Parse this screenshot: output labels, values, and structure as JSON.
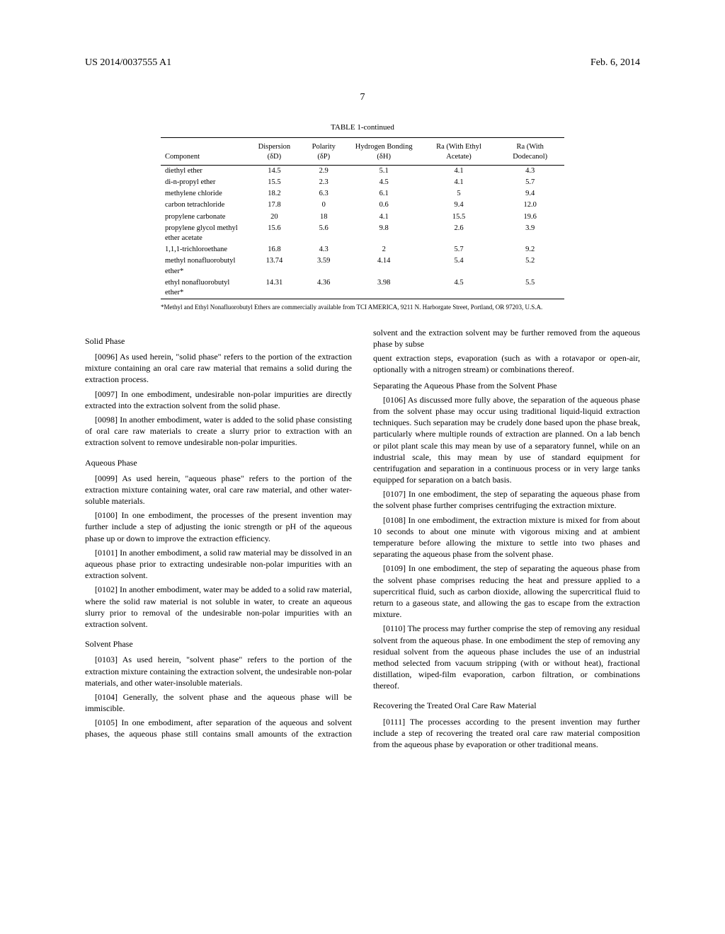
{
  "header": {
    "left": "US 2014/0037555 A1",
    "right": "Feb. 6, 2014"
  },
  "page_number": "7",
  "table": {
    "caption": "TABLE 1-continued",
    "columns": [
      "Component",
      "Dispersion (δD)",
      "Polarity (δP)",
      "Hydrogen Bonding (δH)",
      "Ra (With Ethyl Acetate)",
      "Ra (With Dodecanol)"
    ],
    "rows": [
      [
        "diethyl ether",
        "14.5",
        "2.9",
        "5.1",
        "4.1",
        "4.3"
      ],
      [
        "di-n-propyl ether",
        "15.5",
        "2.3",
        "4.5",
        "4.1",
        "5.7"
      ],
      [
        "methylene chloride",
        "18.2",
        "6.3",
        "6.1",
        "5",
        "9.4"
      ],
      [
        "carbon tetrachloride",
        "17.8",
        "0",
        "0.6",
        "9.4",
        "12.0"
      ],
      [
        "propylene carbonate",
        "20",
        "18",
        "4.1",
        "15.5",
        "19.6"
      ],
      [
        "propylene glycol methyl ether acetate",
        "15.6",
        "5.6",
        "9.8",
        "2.6",
        "3.9"
      ],
      [
        "1,1,1-trichloroethane",
        "16.8",
        "4.3",
        "2",
        "5.7",
        "9.2"
      ],
      [
        "methyl nonafluorobutyl ether*",
        "13.74",
        "3.59",
        "4.14",
        "5.4",
        "5.2"
      ],
      [
        "ethyl nonafluorobutyl ether*",
        "14.31",
        "4.36",
        "3.98",
        "4.5",
        "5.5"
      ]
    ],
    "footnote": "*Methyl and Ethyl Nonafluorobutyl Ethers are commercially available from TCI AMERICA, 9211 N. Harborgate Street, Portland, OR 97203, U.S.A."
  },
  "sections": {
    "solid_phase_title": "Solid Phase",
    "p0096": "[0096]   As used herein, \"solid phase\" refers to the portion of the extraction mixture containing an oral care raw material that remains a solid during the extraction process.",
    "p0097": "[0097]   In one embodiment, undesirable non-polar impurities are directly extracted into the extraction solvent from the solid phase.",
    "p0098": "[0098]   In another embodiment, water is added to the solid phase consisting of oral care raw materials to create a slurry prior to extraction with an extraction solvent to remove undesirable non-polar impurities.",
    "aqueous_phase_title": "Aqueous Phase",
    "p0099": "[0099]   As used herein, \"aqueous phase\" refers to the portion of the extraction mixture containing water, oral care raw material, and other water-soluble materials.",
    "p0100": "[0100]   In one embodiment, the processes of the present invention may further include a step of adjusting the ionic strength or pH of the aqueous phase up or down to improve the extraction efficiency.",
    "p0101": "[0101]   In another embodiment, a solid raw material may be dissolved in an aqueous phase prior to extracting undesirable non-polar impurities with an extraction solvent.",
    "p0102": "[0102]   In another embodiment, water may be added to a solid raw material, where the solid raw material is not soluble in water, to create an aqueous slurry prior to removal of the undesirable non-polar impurities with an extraction solvent.",
    "solvent_phase_title": "Solvent Phase",
    "p0103": "[0103]   As used herein, \"solvent phase\" refers to the portion of the extraction mixture containing the extraction solvent, the undesirable non-polar materials, and other water-insoluble materials.",
    "p0104": "[0104]   Generally, the solvent phase and the aqueous phase will be immiscible.",
    "p0105": "[0105]   In one embodiment, after separation of the aqueous and solvent phases, the aqueous phase still contains small amounts of the extraction solvent and the extraction solvent may be further removed from the aqueous phase by subse",
    "p0105b": "quent extraction steps, evaporation (such as with a rotavapor or open-air, optionally with a nitrogen stream) or combinations thereof.",
    "separating_title": "Separating the Aqueous Phase from the Solvent Phase",
    "p0106": "[0106]   As discussed more fully above, the separation of the aqueous phase from the solvent phase may occur using traditional liquid-liquid extraction techniques. Such separation may be crudely done based upon the phase break, particularly where multiple rounds of extraction are planned. On a lab bench or pilot plant scale this may mean by use of a separatory funnel, while on an industrial scale, this may mean by use of standard equipment for centrifugation and separation in a continuous process or in very large tanks equipped for separation on a batch basis.",
    "p0107": "[0107]   In one embodiment, the step of separating the aqueous phase from the solvent phase further comprises centrifuging the extraction mixture.",
    "p0108": "[0108]   In one embodiment, the extraction mixture is mixed for from about 10 seconds to about one minute with vigorous mixing and at ambient temperature before allowing the mixture to settle into two phases and separating the aqueous phase from the solvent phase.",
    "p0109": "[0109]   In one embodiment, the step of separating the aqueous phase from the solvent phase comprises reducing the heat and pressure applied to a supercritical fluid, such as carbon dioxide, allowing the supercritical fluid to return to a gaseous state, and allowing the gas to escape from the extraction mixture.",
    "p0110": "[0110]   The process may further comprise the step of removing any residual solvent from the aqueous phase. In one embodiment the step of removing any residual solvent from the aqueous phase includes the use of an industrial method selected from vacuum stripping (with or without heat), fractional distillation, wiped-film evaporation, carbon filtration, or combinations thereof.",
    "recovering_title": "Recovering the Treated Oral Care Raw Material",
    "p0111": "[0111]   The processes according to the present invention may further include a step of recovering the treated oral care raw material composition from the aqueous phase by evaporation or other traditional means."
  }
}
